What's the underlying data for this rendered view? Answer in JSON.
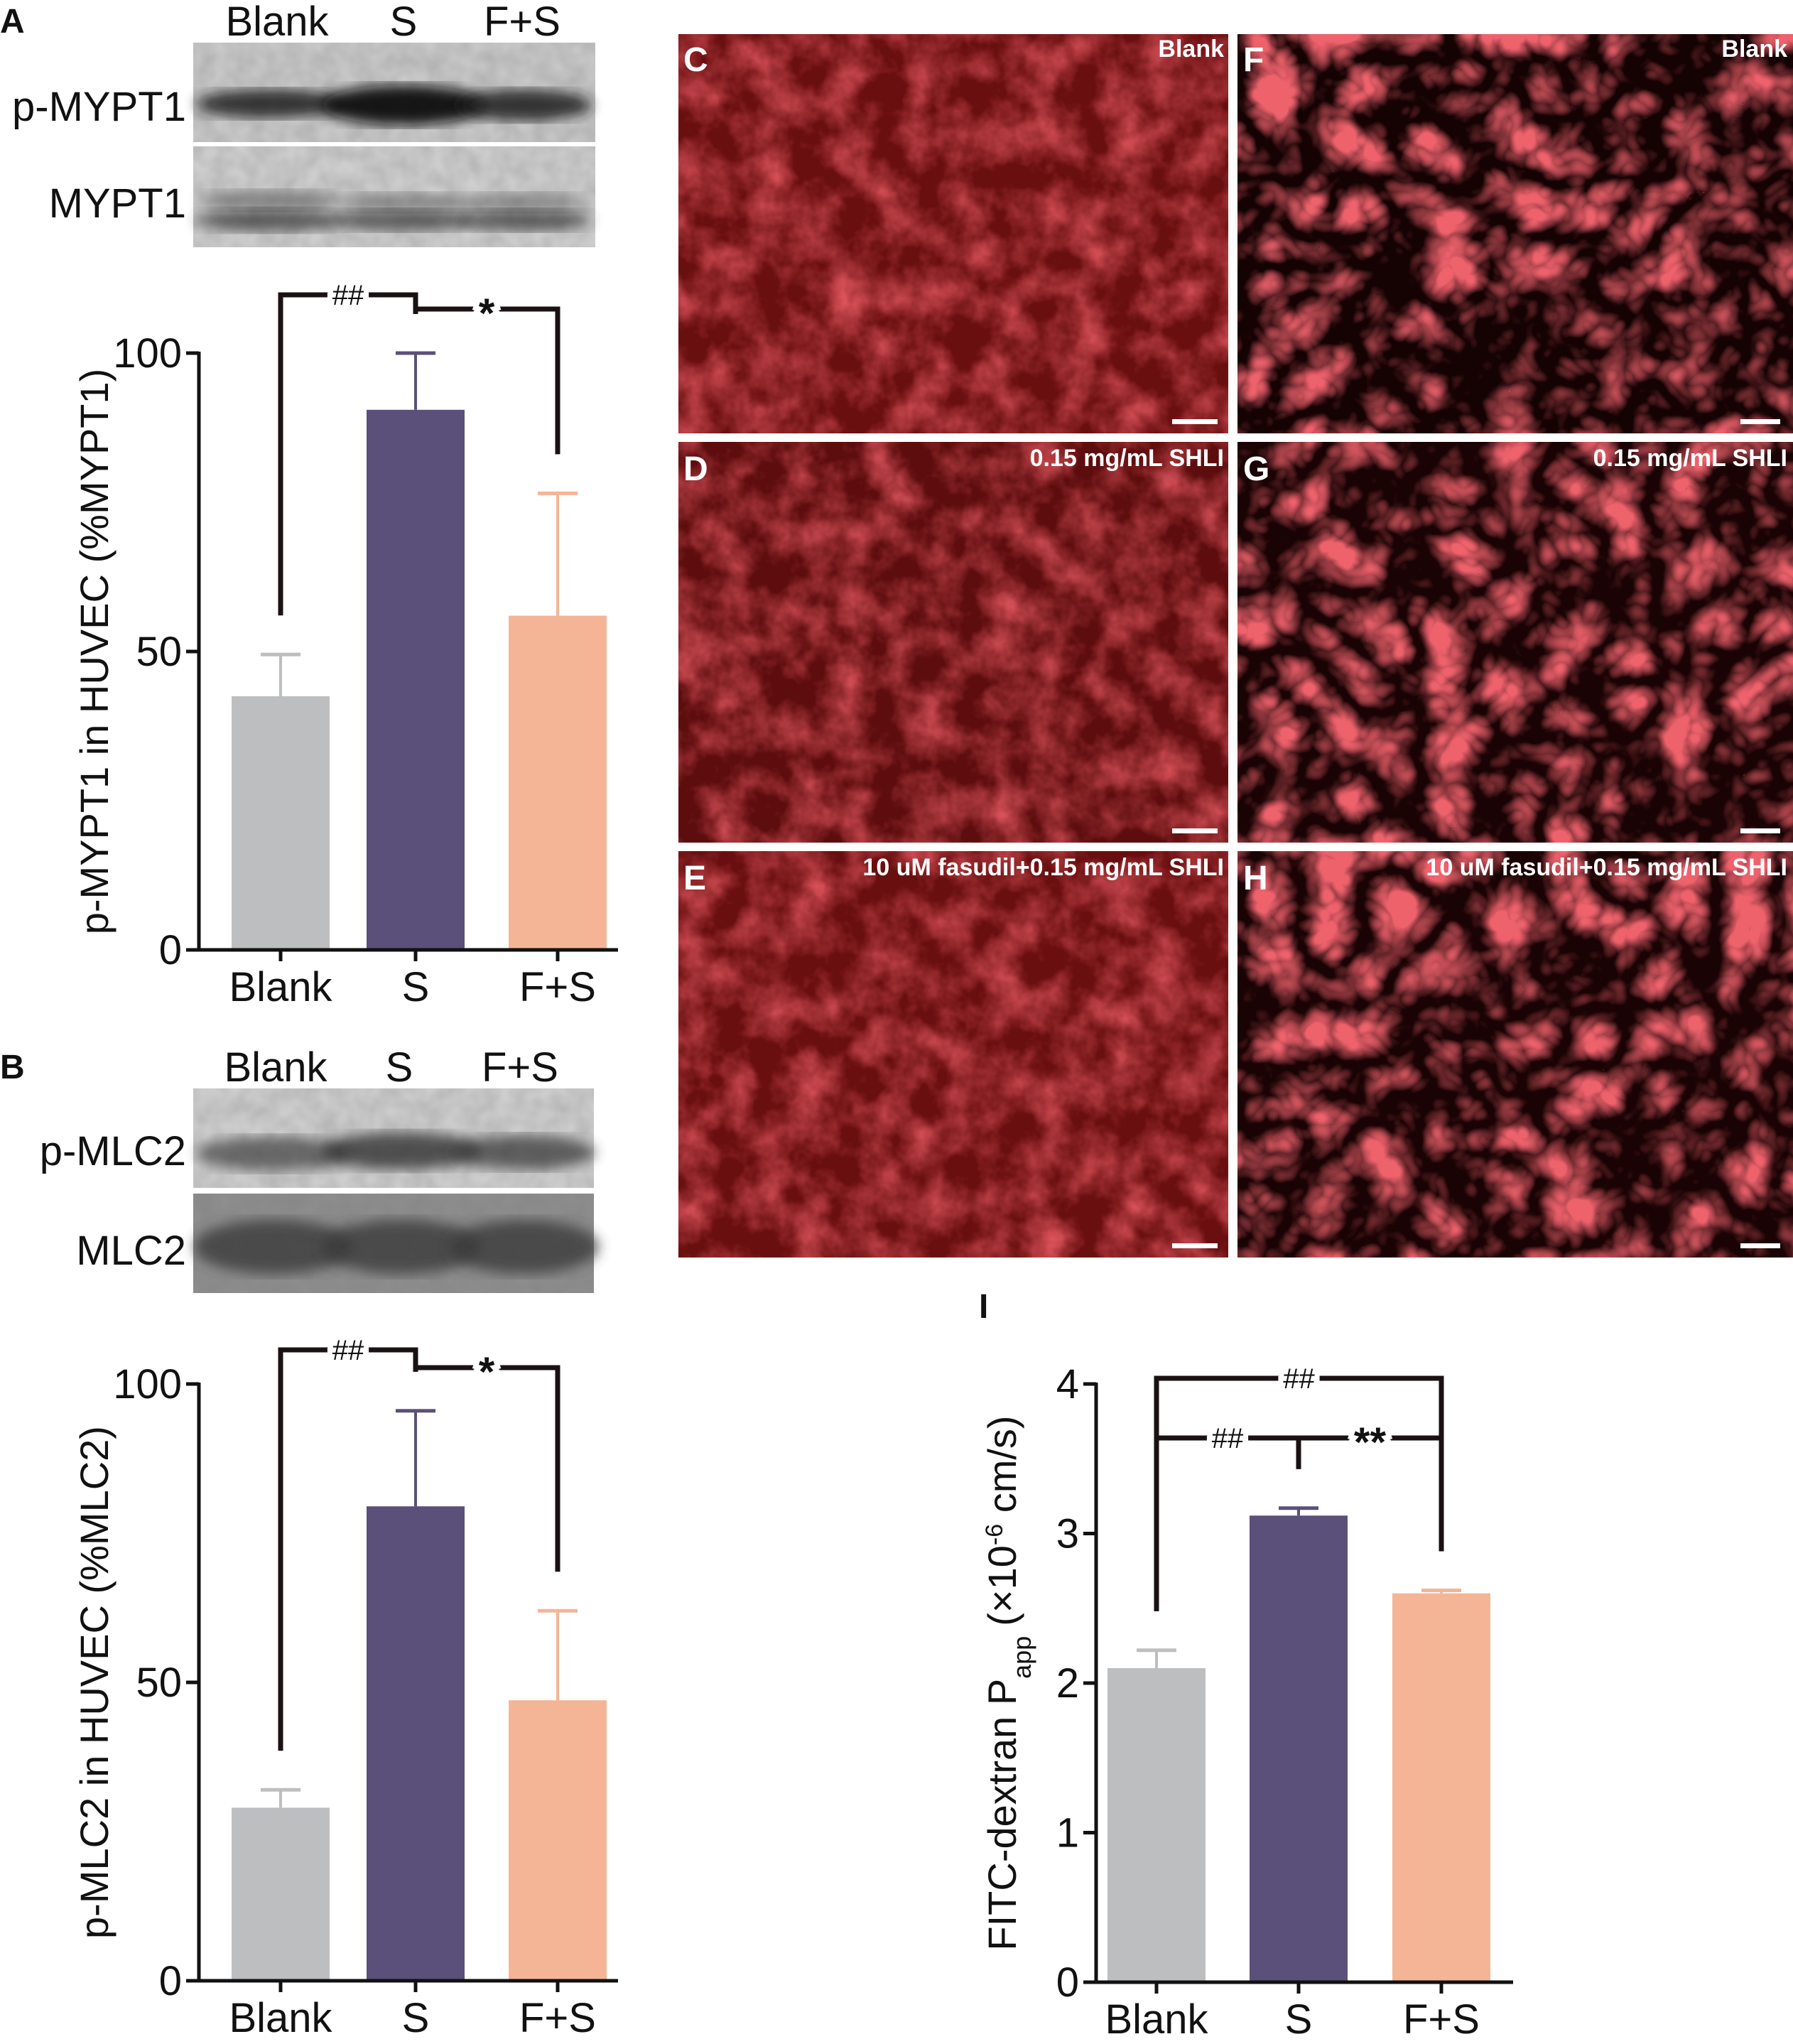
{
  "panels": {
    "A": "A",
    "B": "B",
    "C": "C",
    "D": "D",
    "E": "E",
    "F": "F",
    "G": "G",
    "H": "H",
    "I": "I"
  },
  "blot_A": {
    "lanes": [
      "Blank",
      "S",
      "F+S"
    ],
    "rows": [
      "p-MYPT1",
      "MYPT1"
    ]
  },
  "blot_B": {
    "lanes": [
      "Blank",
      "S",
      "F+S"
    ],
    "rows": [
      "p-MLC2",
      "MLC2"
    ]
  },
  "micrographs": {
    "C": "Blank",
    "D": "0.15 mg/mL SHLI",
    "E": "10 uM fasudil+0.15 mg/mL SHLI",
    "F": "Blank",
    "G": "0.15 mg/mL SHLI",
    "H": "10 uM fasudil+0.15 mg/mL SHLI",
    "scale_bar": "20 μm"
  },
  "colors": {
    "blank": "#bcbec0",
    "s": "#5b5079",
    "fs": "#f4b597",
    "micro_bg": "#6e0d0d",
    "micro_cell": "#c8242a"
  },
  "chart_data": [
    {
      "panel": "A",
      "type": "bar",
      "categories": [
        "Blank",
        "S",
        "F+S"
      ],
      "values": [
        42.5,
        90.5,
        56
      ],
      "errors": [
        7,
        9.5,
        20.5
      ],
      "ylabel": "p-MYPT1 in HUVEC (%MYPT1)",
      "ylim": [
        0,
        100
      ],
      "yticks": [
        0,
        50,
        100
      ],
      "significance": [
        {
          "from": 0,
          "to": 1,
          "label": "##"
        },
        {
          "from": 1,
          "to": 2,
          "label": "*"
        }
      ]
    },
    {
      "panel": "B",
      "type": "bar",
      "categories": [
        "Blank",
        "S",
        "F+S"
      ],
      "values": [
        29,
        79.5,
        47
      ],
      "errors": [
        3,
        16,
        15
      ],
      "ylabel": "p-MLC2 in HUVEC (%MLC2)",
      "ylim": [
        0,
        100
      ],
      "yticks": [
        0,
        50,
        100
      ],
      "significance": [
        {
          "from": 0,
          "to": 1,
          "label": "##"
        },
        {
          "from": 1,
          "to": 2,
          "label": "*"
        }
      ]
    },
    {
      "panel": "I",
      "type": "bar",
      "categories": [
        "Blank",
        "S",
        "F+S"
      ],
      "values": [
        2.1,
        3.12,
        2.6
      ],
      "errors": [
        0.12,
        0.05,
        0.02
      ],
      "ylabel_main": "FITC-dextran P",
      "ylabel_sub": "app",
      "ylabel_unit_pre": "(×10",
      "ylabel_sup": "-6",
      "ylabel_unit_post": " cm/s)",
      "ylim": [
        0,
        4
      ],
      "yticks": [
        0,
        1,
        2,
        3,
        4
      ],
      "significance": [
        {
          "from": 0,
          "to": 2,
          "label": "##"
        },
        {
          "from": 0,
          "to": 1,
          "label": "##"
        },
        {
          "from": 1,
          "to": 2,
          "label": "**"
        }
      ]
    }
  ]
}
